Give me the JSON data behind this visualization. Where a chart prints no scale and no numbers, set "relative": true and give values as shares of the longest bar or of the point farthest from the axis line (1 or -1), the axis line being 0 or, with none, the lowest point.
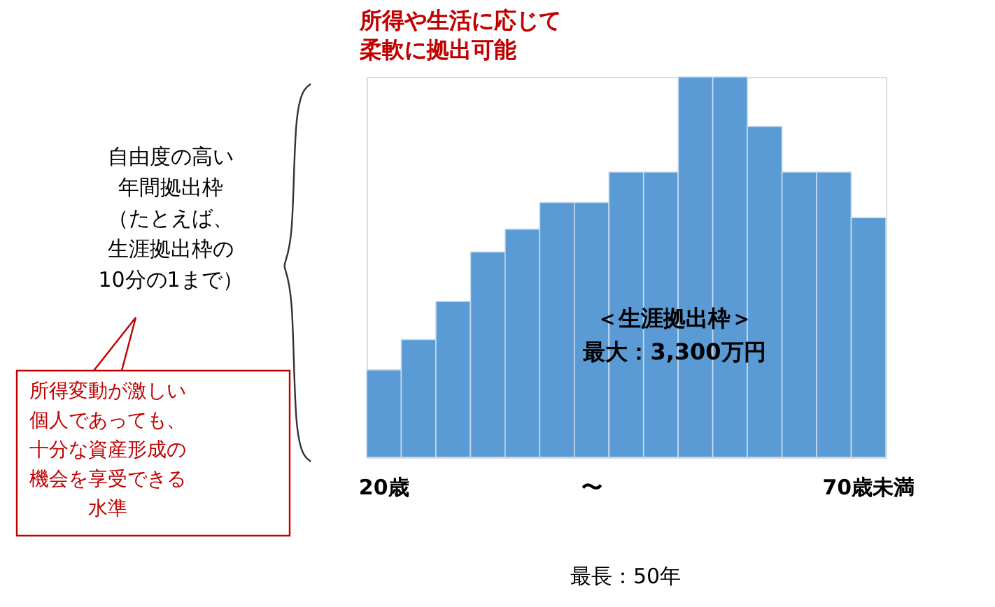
{
  "chart_data": {
    "type": "bar",
    "relative": true,
    "title": "所得や生活に応じて柔軟に拠出可能",
    "categories": [
      "20歳",
      null,
      null,
      null,
      null,
      null,
      "〜",
      null,
      null,
      null,
      null,
      null,
      null,
      null,
      "70歳未満"
    ],
    "values": [
      0.23,
      0.31,
      0.41,
      0.54,
      0.6,
      0.67,
      0.67,
      0.75,
      0.75,
      1,
      1,
      0.87,
      0.75,
      0.75,
      0.63
    ],
    "color": "#5b9bd5",
    "annotations": [
      "＜生涯拠出枠＞最大：3,300万円",
      "自由度の高い年間拠出枠（たとえば、生涯拠出枠の10分の1まで）",
      "所得変動が激しい個人であっても、十分な資産形成の機会を享受できる水準",
      "最長：50年"
    ]
  }
}
